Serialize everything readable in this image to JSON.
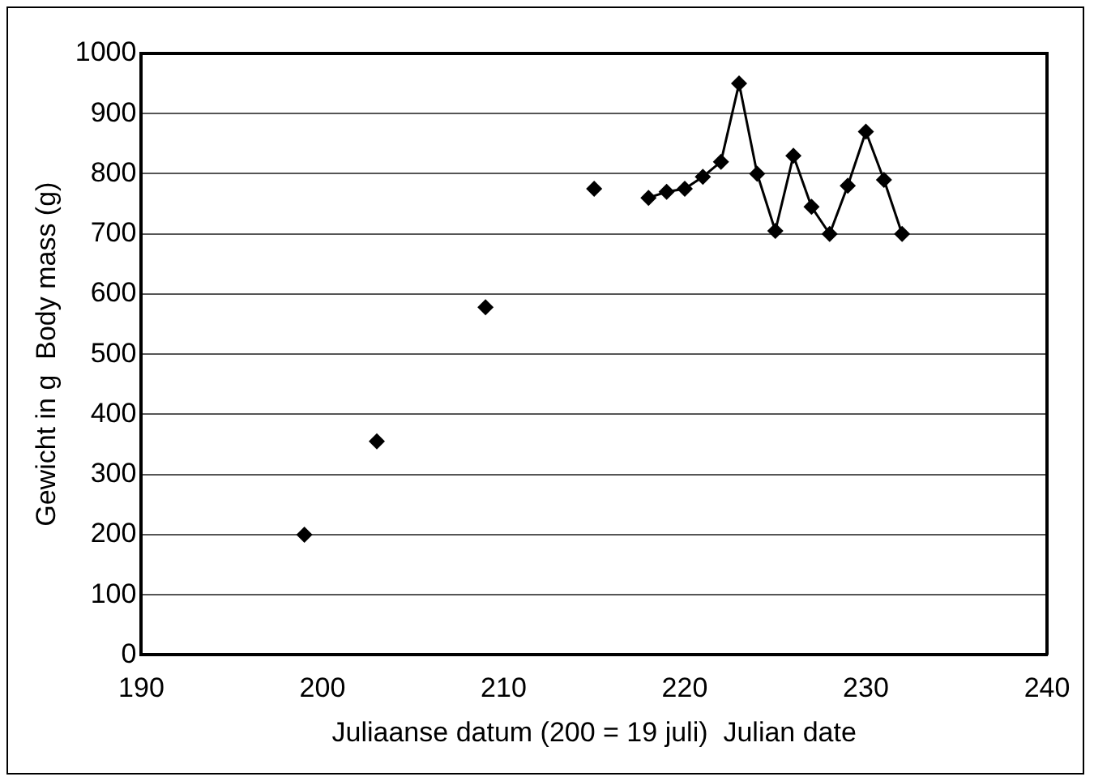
{
  "chart_data": {
    "type": "scatter",
    "xlabel": "Juliaanse datum (200 = 19 juli)  Julian date",
    "ylabel": "Gewicht in g  Body mass (g)",
    "xlim": [
      190,
      240
    ],
    "xticks": [
      190,
      200,
      210,
      220,
      230,
      240
    ],
    "ylim": [
      0,
      1000
    ],
    "yticks": [
      0,
      100,
      200,
      300,
      400,
      500,
      600,
      700,
      800,
      900,
      1000
    ],
    "grid": "y",
    "marker": "diamond",
    "series": [
      {
        "color": "#000000",
        "x": [
          199,
          203,
          209,
          215
        ],
        "values": [
          200,
          355,
          578,
          775
        ]
      },
      {
        "type": "line",
        "color": "#000000",
        "x": [
          218,
          219,
          220,
          221,
          222,
          223,
          224,
          225,
          226,
          227,
          228,
          229,
          230,
          231,
          232
        ],
        "values": [
          760,
          770,
          775,
          795,
          820,
          950,
          800,
          705,
          830,
          745,
          700,
          780,
          870,
          790,
          700
        ]
      }
    ]
  }
}
